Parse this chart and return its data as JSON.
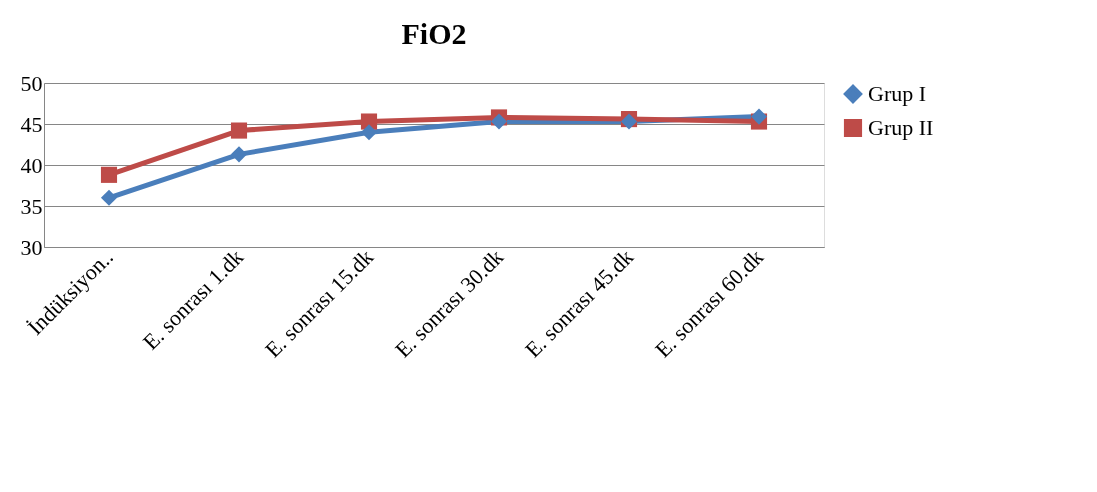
{
  "chart_data": {
    "type": "line",
    "title": "FiO2",
    "categories": [
      "İndüksiyon..",
      "E. sonrası 1.dk",
      "E. sonrası 15.dk",
      "E. sonrası 30.dk",
      "E. sonrası 45.dk",
      "E. sonrası 60.dk"
    ],
    "series": [
      {
        "name": "Grup I",
        "color": "#4a7ebb",
        "marker": "diamond",
        "values": [
          36.0,
          41.3,
          44.0,
          45.3,
          45.3,
          45.9
        ]
      },
      {
        "name": "Grup II",
        "color": "#be4b48",
        "marker": "square",
        "values": [
          38.8,
          44.2,
          45.3,
          45.8,
          45.6,
          45.3
        ]
      }
    ],
    "ylim": [
      30,
      50
    ],
    "yticks": [
      30,
      35,
      40,
      45,
      50
    ],
    "grid": "y",
    "legend": "right",
    "line_style": "solid"
  }
}
